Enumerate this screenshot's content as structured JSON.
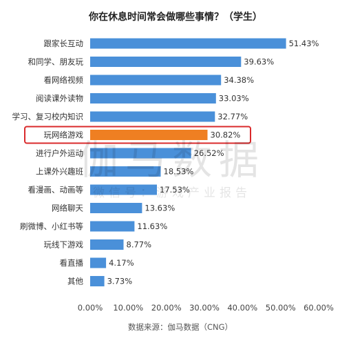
{
  "chart_data": {
    "type": "bar",
    "orientation": "horizontal",
    "title": "你在休息时间常会做哪些事情？（学生）",
    "categories": [
      "跟家长互动",
      "和同学、朋友玩",
      "看网络视频",
      "阅读课外读物",
      "学习、复习校内知识",
      "玩网络游戏",
      "进行户外运动",
      "上课外兴趣班",
      "看漫画、动画等",
      "网络聊天",
      "刷微博、小红书等",
      "玩线下游戏",
      "看直播",
      "其他"
    ],
    "values": [
      51.43,
      39.63,
      34.38,
      33.03,
      32.77,
      30.82,
      26.52,
      18.53,
      17.53,
      13.63,
      11.63,
      8.77,
      4.17,
      3.73
    ],
    "value_labels": [
      "51.43%",
      "39.63%",
      "34.38%",
      "33.03%",
      "32.77%",
      "30.82%",
      "26.52%",
      "18.53%",
      "17.53%",
      "13.63%",
      "11.63%",
      "8.77%",
      "4.17%",
      "3.73%"
    ],
    "xlim": [
      0,
      60
    ],
    "xticks": [
      "0.00%",
      "10.00%",
      "20.00%",
      "30.00%",
      "40.00%",
      "50.00%",
      "60.00%"
    ],
    "grid": false,
    "highlight_category": "玩网络游戏",
    "colors": {
      "bar": "#4a90d9",
      "highlight_bar": "#ef7f22",
      "highlight_box": "#d9292b"
    },
    "source": "数据来源：伽马数据（CNG）"
  },
  "watermark": {
    "main": "伽马数据",
    "sub": "微信号：游戏产业报告"
  }
}
